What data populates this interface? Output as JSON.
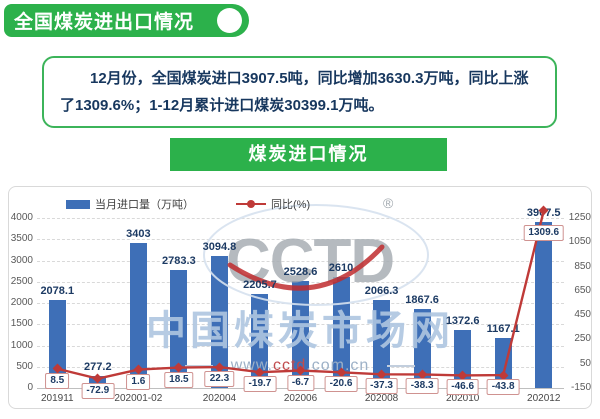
{
  "header": {
    "title": "全国煤炭进出口情况"
  },
  "summary": {
    "text": "12月份，全国煤炭进口3907.5吨，同比增加3630.3万吨，同比上涨了1309.6%；1-12月累计进口煤炭30399.1万吨。"
  },
  "section": {
    "title": "煤炭进口情况"
  },
  "watermark": {
    "logo": "CCTD",
    "registered": "®",
    "site_name": "中国煤炭市场网",
    "url_pre": "www.",
    "url_mid": "cctd",
    "url_post": ".com.cn"
  },
  "colors": {
    "green": "#2cb14b",
    "bar_blue": "#3e6fb7",
    "line_red": "#bf3a38",
    "navy_text": "#17375e",
    "label_box_border": "#cf9290"
  },
  "chart_data": {
    "type": "bar+line",
    "legend": {
      "bar": "当月进口量（万吨）",
      "line": "同比(%)",
      "position": "top"
    },
    "categories": [
      "201911",
      "",
      "202001-02",
      "",
      "202004",
      "",
      "202006",
      "",
      "202008",
      "",
      "202010",
      "",
      "202012"
    ],
    "series": [
      {
        "name": "当月进口量（万吨）",
        "type": "bar",
        "axis": "left",
        "color": "#3e6fb7",
        "values": [
          2078.1,
          277.2,
          3403,
          2783.3,
          3094.8,
          2205.7,
          2528.6,
          2610,
          2066.3,
          1867.6,
          1372.6,
          1167.1,
          3907.5
        ],
        "labels": [
          "2078.1",
          "277.2",
          "3403",
          "2783.3",
          "3094.8",
          "2205.7",
          "2528.6",
          "2610",
          "2066.3",
          "1867.6",
          "1372.6",
          "1167.1",
          "3907.5"
        ]
      },
      {
        "name": "同比(%)",
        "type": "line",
        "axis": "right",
        "color": "#bf3a38",
        "values": [
          8.5,
          -72.9,
          1.6,
          18.5,
          22.3,
          -19.7,
          -6.7,
          -20.6,
          -37.3,
          -38.3,
          -46.6,
          -43.8,
          1309.6
        ],
        "labels": [
          "8.5",
          "-72.9",
          "1.6",
          "18.5",
          "22.3",
          "-19.7",
          "-6.7",
          "-20.6",
          "-37.3",
          "-38.3",
          "-46.6",
          "-43.8",
          "1309.6"
        ]
      }
    ],
    "left_axis": {
      "min": 0,
      "max": 4000,
      "step": 500,
      "ticks": [
        4000,
        3500,
        3000,
        2500,
        2000,
        1500,
        1000,
        500,
        0
      ]
    },
    "right_axis": {
      "min": -150,
      "max": 1250,
      "step": 200,
      "ticks": [
        1250,
        1050,
        850,
        650,
        450,
        250,
        50,
        -150
      ]
    },
    "grid": "dashed horizontal"
  }
}
